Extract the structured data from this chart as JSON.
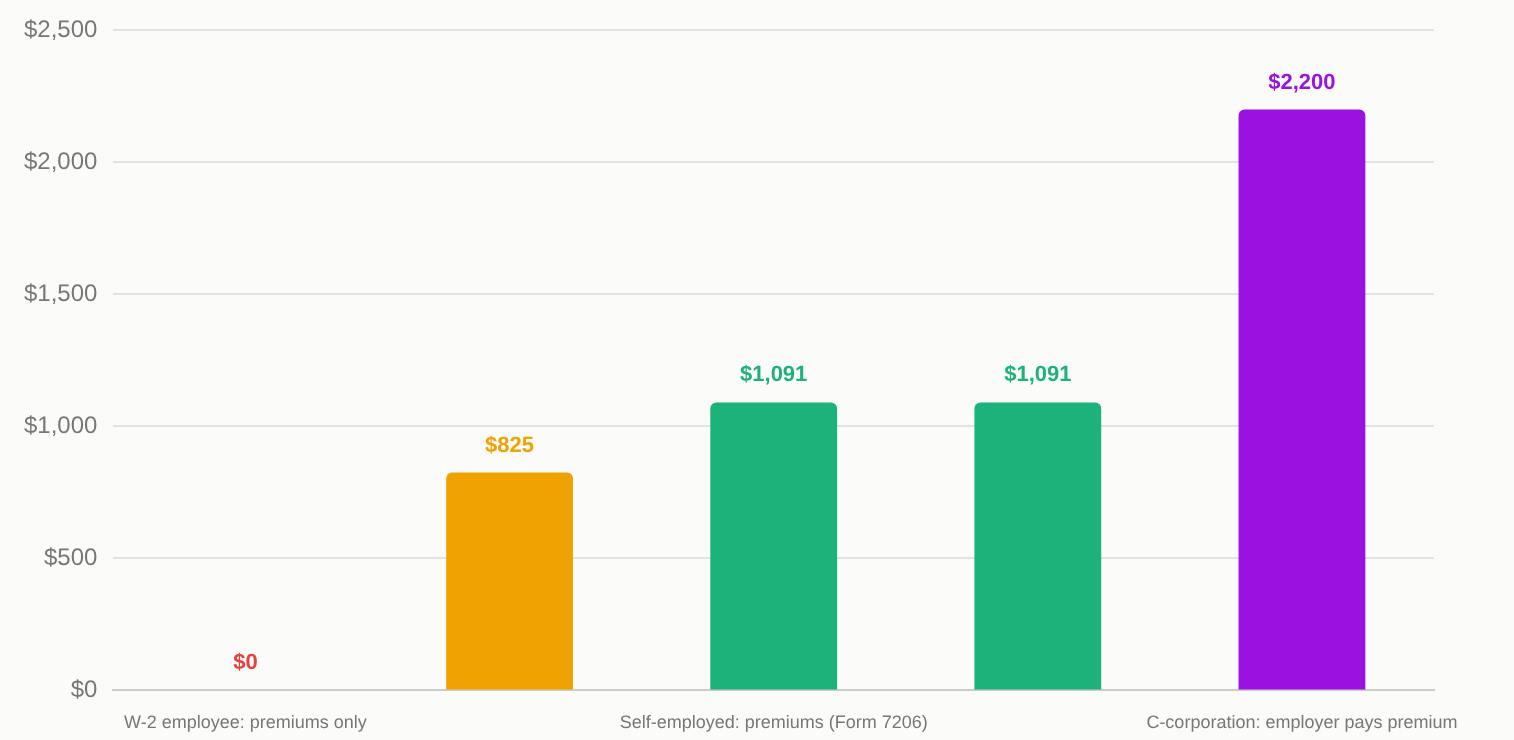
{
  "chart_data": {
    "type": "bar",
    "categories": [
      "W-2 employee: premiums only",
      null,
      "Self-employed: premiums (Form 7206)",
      null,
      "C-corporation: employer pays premium"
    ],
    "values": [
      0,
      825,
      1091,
      1091,
      2200
    ],
    "colors": [
      "#e8403a",
      "#f0a202",
      "#1db27a",
      "#1db27a",
      "#9b12e0"
    ],
    "value_labels": [
      "$0",
      "$825",
      "$1,091",
      "$1,091",
      "$2,200"
    ],
    "ylim": [
      0,
      2500
    ],
    "yticks": [
      {
        "value": 0,
        "label": "$0"
      },
      {
        "value": 500,
        "label": "$500"
      },
      {
        "value": 1000,
        "label": "$1,000"
      },
      {
        "value": 1500,
        "label": "$1,500"
      },
      {
        "value": 2000,
        "label": "$2,000"
      },
      {
        "value": 2500,
        "label": "$2,500"
      }
    ],
    "grid": "y"
  }
}
